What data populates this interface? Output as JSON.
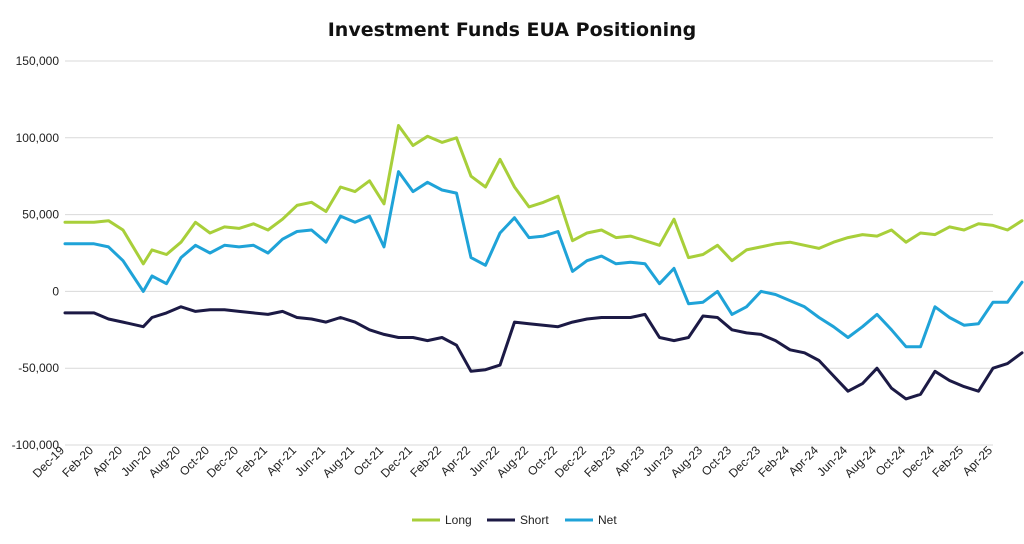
{
  "chart_data": {
    "type": "line",
    "title": "Investment Funds EUA Positioning",
    "xlabel": "",
    "ylabel": "",
    "ylim": [
      -100000,
      150000
    ],
    "y_ticks": [
      150000,
      100000,
      50000,
      0,
      -50000,
      -100000
    ],
    "y_tick_labels": [
      "150,000",
      "100,000",
      "50,000",
      "0",
      "-50,000",
      "-100,000"
    ],
    "x_tick_labels": [
      "Dec-19",
      "Feb-20",
      "Apr-20",
      "Jun-20",
      "Aug-20",
      "Oct-20",
      "Dec-20",
      "Feb-21",
      "Apr-21",
      "Jun-21",
      "Aug-21",
      "Oct-21",
      "Dec-21",
      "Feb-22",
      "Apr-22",
      "Jun-22",
      "Aug-22",
      "Oct-22",
      "Dec-22",
      "Feb-23",
      "Apr-23",
      "Jun-23",
      "Aug-23",
      "Oct-23",
      "Dec-23",
      "Feb-24",
      "Apr-24",
      "Jun-24",
      "Aug-24",
      "Oct-24",
      "Dec-24",
      "Feb-25",
      "Apr-25"
    ],
    "grid": true,
    "legend_position": "bottom",
    "series": [
      {
        "name": "Long",
        "color": "#a8cf3a",
        "x": [
          0,
          1,
          1.5,
          2,
          2.7,
          3,
          3.5,
          4,
          4.5,
          5,
          5.5,
          6,
          6.5,
          7,
          7.5,
          8,
          8.5,
          9,
          9.5,
          10,
          10.5,
          11,
          11.5,
          12,
          12.5,
          13,
          13.5,
          14,
          14.5,
          15,
          15.5,
          16,
          16.5,
          17,
          17.5,
          18,
          18.5,
          19,
          19.5,
          20,
          20.5,
          21,
          21.5,
          22,
          22.5,
          23,
          23.5,
          24,
          24.5,
          25,
          25.5,
          26,
          26.5,
          27,
          27.5,
          28,
          28.5,
          29,
          29.5,
          30,
          30.5,
          31,
          31.5,
          32,
          32.5,
          33
        ],
        "values": [
          45000,
          45000,
          46000,
          40000,
          18000,
          27000,
          24000,
          32000,
          45000,
          38000,
          42000,
          41000,
          44000,
          40000,
          47000,
          56000,
          58000,
          52000,
          68000,
          65000,
          72000,
          57000,
          108000,
          95000,
          101000,
          97000,
          100000,
          75000,
          68000,
          86000,
          68000,
          55000,
          58000,
          62000,
          33000,
          38000,
          40000,
          35000,
          36000,
          33000,
          30000,
          47000,
          22000,
          24000,
          30000,
          20000,
          27000,
          29000,
          31000,
          32000,
          30000,
          28000,
          32000,
          35000,
          37000,
          36000,
          40000,
          32000,
          38000,
          37000,
          42000,
          40000,
          44000,
          43000,
          40000,
          46000
        ]
      },
      {
        "name": "Short",
        "color": "#1c1a45",
        "x": [
          0,
          1,
          1.5,
          2,
          2.7,
          3,
          3.5,
          4,
          4.5,
          5,
          5.5,
          6,
          6.5,
          7,
          7.5,
          8,
          8.5,
          9,
          9.5,
          10,
          10.5,
          11,
          11.5,
          12,
          12.5,
          13,
          13.5,
          14,
          14.5,
          15,
          15.5,
          16,
          16.5,
          17,
          17.5,
          18,
          18.5,
          19,
          19.5,
          20,
          20.5,
          21,
          21.5,
          22,
          22.5,
          23,
          23.5,
          24,
          24.5,
          25,
          25.5,
          26,
          26.5,
          27,
          27.5,
          28,
          28.5,
          29,
          29.5,
          30,
          30.5,
          31,
          31.5,
          32,
          32.5,
          33
        ],
        "values": [
          -14000,
          -14000,
          -18000,
          -20000,
          -23000,
          -17000,
          -14000,
          -10000,
          -13000,
          -12000,
          -12000,
          -13000,
          -14000,
          -15000,
          -13000,
          -17000,
          -18000,
          -20000,
          -17000,
          -20000,
          -25000,
          -28000,
          -30000,
          -30000,
          -32000,
          -30000,
          -35000,
          -52000,
          -51000,
          -48000,
          -20000,
          -21000,
          -22000,
          -23000,
          -20000,
          -18000,
          -17000,
          -17000,
          -17000,
          -15000,
          -30000,
          -32000,
          -30000,
          -16000,
          -17000,
          -25000,
          -27000,
          -28000,
          -32000,
          -38000,
          -40000,
          -45000,
          -55000,
          -65000,
          -60000,
          -50000,
          -63000,
          -70000,
          -67000,
          -52000,
          -58000,
          -62000,
          -65000,
          -50000,
          -47000,
          -40000
        ]
      },
      {
        "name": "Net",
        "color": "#1fa3d8",
        "x": [
          0,
          1,
          1.5,
          2,
          2.7,
          3,
          3.5,
          4,
          4.5,
          5,
          5.5,
          6,
          6.5,
          7,
          7.5,
          8,
          8.5,
          9,
          9.5,
          10,
          10.5,
          11,
          11.5,
          12,
          12.5,
          13,
          13.5,
          14,
          14.5,
          15,
          15.5,
          16,
          16.5,
          17,
          17.5,
          18,
          18.5,
          19,
          19.5,
          20,
          20.5,
          21,
          21.5,
          22,
          22.5,
          23,
          23.5,
          24,
          24.5,
          25,
          25.5,
          26,
          26.5,
          27,
          27.5,
          28,
          28.5,
          29,
          29.5,
          30,
          30.5,
          31,
          31.5,
          32,
          32.5,
          33
        ],
        "values": [
          31000,
          31000,
          29000,
          20000,
          0,
          10000,
          5000,
          22000,
          30000,
          25000,
          30000,
          29000,
          30000,
          25000,
          34000,
          39000,
          40000,
          32000,
          49000,
          45000,
          49000,
          29000,
          78000,
          65000,
          71000,
          66000,
          64000,
          22000,
          17000,
          38000,
          48000,
          35000,
          36000,
          39000,
          13000,
          20000,
          23000,
          18000,
          19000,
          18000,
          5000,
          15000,
          -8000,
          -7000,
          0,
          -15000,
          -10000,
          0,
          -2000,
          -6000,
          -10000,
          -17000,
          -23000,
          -30000,
          -23000,
          -15000,
          -25000,
          -36000,
          -36000,
          -10000,
          -17000,
          -22000,
          -21000,
          -7000,
          -7000,
          6000
        ]
      }
    ]
  }
}
